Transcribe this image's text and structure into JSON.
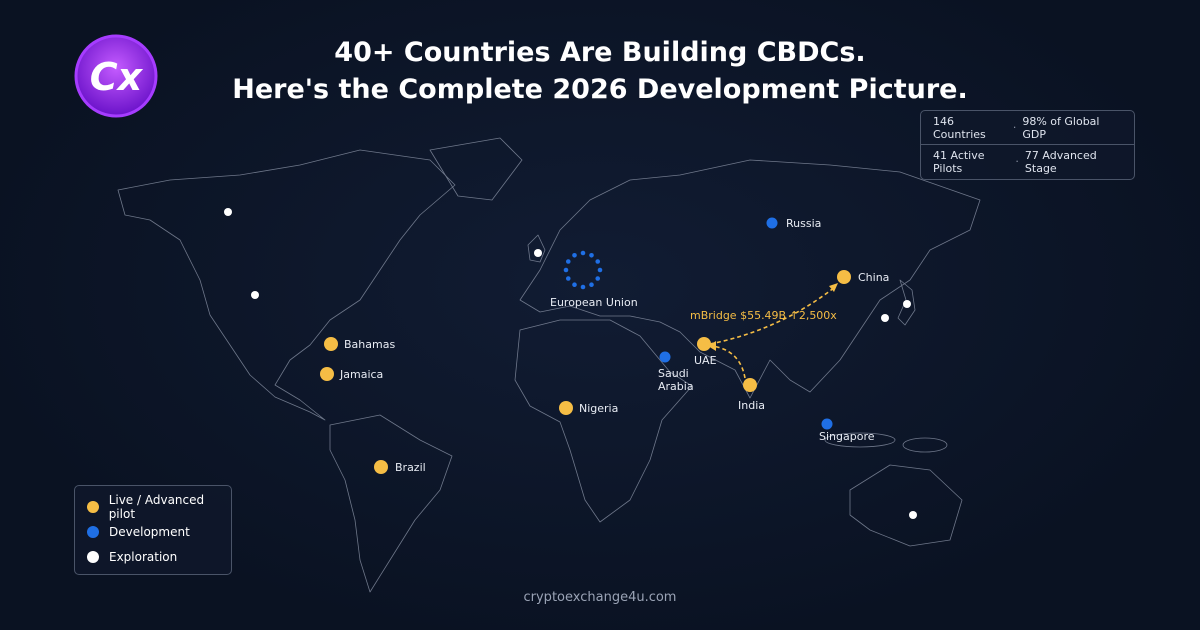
{
  "logo": {
    "text": "Cx"
  },
  "header": {
    "title_line1": "40+ Countries Are Building CBDCs.",
    "title_line2": "Here's the Complete 2026 Development Picture."
  },
  "stats": {
    "row1": [
      "146 Countries",
      "98% of Global GDP"
    ],
    "row2": [
      "41 Active Pilots",
      "77 Advanced Stage"
    ]
  },
  "legend": [
    {
      "label": "Live / Advanced pilot",
      "color": "#f5bd45",
      "places": [
        "China",
        "Bahamas",
        "Jamaica",
        "Nigeria",
        "Brazil",
        "UAE",
        "India"
      ]
    },
    {
      "label": "Development",
      "color": "#1f6fe5",
      "places": [
        "Russia",
        "European Union",
        "Saudi Arabia",
        "Singapore"
      ]
    },
    {
      "label": "Exploration",
      "color": "#ffffff"
    }
  ],
  "annotation": "mBridge $55.49B ↑2,500x",
  "footer": "cryptoexchange4u.com"
}
